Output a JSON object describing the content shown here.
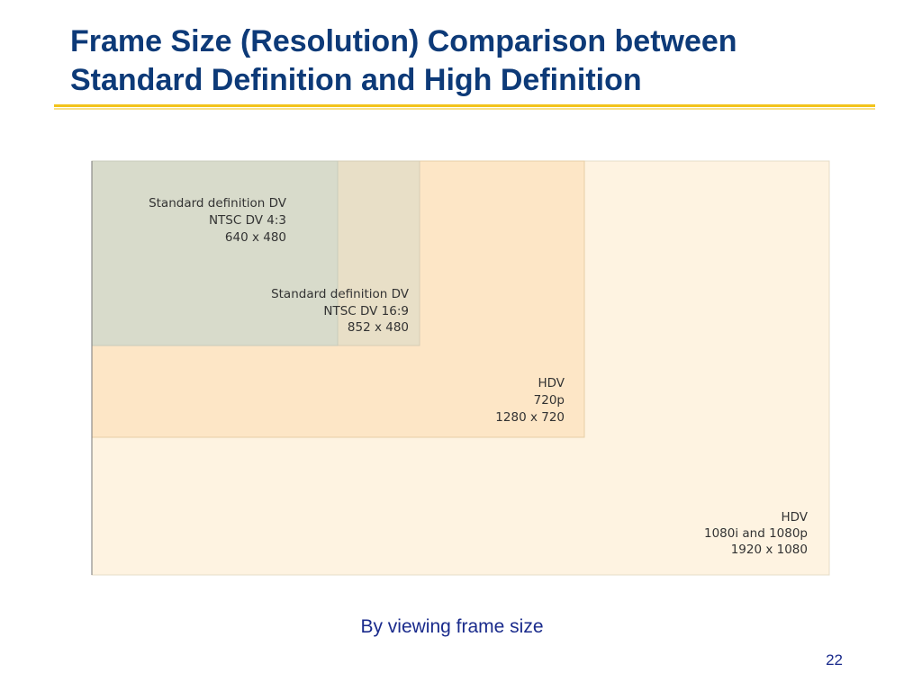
{
  "title": [
    "Frame Size (Resolution) Comparison between",
    "Standard Definition and High Definition"
  ],
  "frames": [
    {
      "lines": [
        "HDV",
        "1080i and 1080p",
        "1920 x 1080"
      ]
    },
    {
      "lines": [
        "HDV",
        "720p",
        "1280 x 720"
      ]
    },
    {
      "lines": [
        "Standard definition DV",
        "NTSC DV 16:9",
        "852 x 480"
      ]
    },
    {
      "lines": [
        "Standard definition DV",
        "NTSC DV 4:3",
        "640 x 480"
      ]
    }
  ],
  "caption": "By viewing frame size",
  "page_number": "22"
}
